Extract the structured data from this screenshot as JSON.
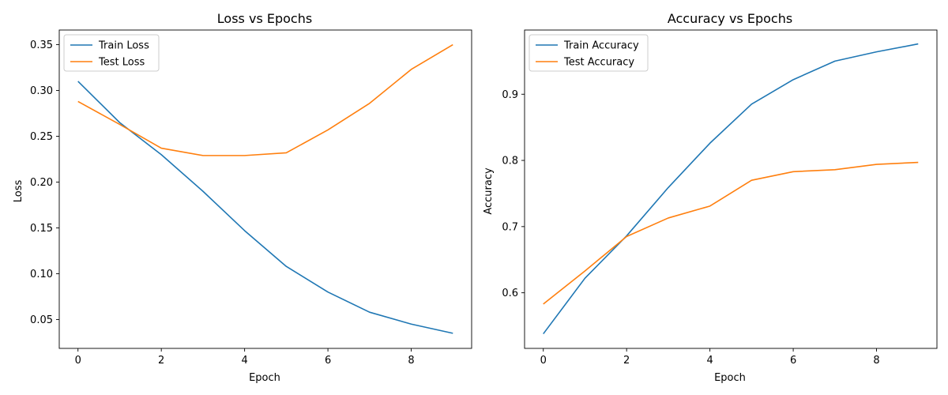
{
  "colors": {
    "train": "#1f77b4",
    "test": "#ff7f0e"
  },
  "chart_data": [
    {
      "type": "line",
      "title": "Loss vs Epochs",
      "xlabel": "Epoch",
      "ylabel": "Loss",
      "x": [
        0,
        1,
        2,
        3,
        4,
        5,
        6,
        7,
        8,
        9
      ],
      "xlim": [
        -0.45,
        9.45
      ],
      "ylim": [
        0.0185,
        0.366
      ],
      "xticks": [
        0,
        2,
        4,
        6,
        8
      ],
      "xtick_labels": [
        "0",
        "2",
        "4",
        "6",
        "8"
      ],
      "yticks": [
        0.05,
        0.1,
        0.15,
        0.2,
        0.25,
        0.3,
        0.35
      ],
      "ytick_labels": [
        "0.05",
        "0.10",
        "0.15",
        "0.20",
        "0.25",
        "0.30",
        "0.35"
      ],
      "grid": false,
      "legend": "upper-left",
      "series": [
        {
          "name": "Train Loss",
          "color": "#1f77b4",
          "values": [
            0.31,
            0.265,
            0.23,
            0.19,
            0.147,
            0.108,
            0.08,
            0.058,
            0.045,
            0.035
          ]
        },
        {
          "name": "Test Loss",
          "color": "#ff7f0e",
          "values": [
            0.288,
            0.263,
            0.237,
            0.229,
            0.229,
            0.232,
            0.257,
            0.286,
            0.323,
            0.35
          ]
        }
      ]
    },
    {
      "type": "line",
      "title": "Accuracy vs Epochs",
      "xlabel": "Epoch",
      "ylabel": "Accuracy",
      "x": [
        0,
        1,
        2,
        3,
        4,
        5,
        6,
        7,
        8,
        9
      ],
      "xlim": [
        -0.45,
        9.45
      ],
      "ylim": [
        0.516,
        0.997
      ],
      "xticks": [
        0,
        2,
        4,
        6,
        8
      ],
      "xtick_labels": [
        "0",
        "2",
        "4",
        "6",
        "8"
      ],
      "yticks": [
        0.6,
        0.7,
        0.8,
        0.9
      ],
      "ytick_labels": [
        "0.6",
        "0.7",
        "0.8",
        "0.9"
      ],
      "grid": false,
      "legend": "upper-left",
      "series": [
        {
          "name": "Train Accuracy",
          "color": "#1f77b4",
          "values": [
            0.538,
            0.622,
            0.686,
            0.759,
            0.826,
            0.885,
            0.922,
            0.95,
            0.964,
            0.976
          ]
        },
        {
          "name": "Test Accuracy",
          "color": "#ff7f0e",
          "values": [
            0.583,
            0.633,
            0.685,
            0.713,
            0.731,
            0.77,
            0.783,
            0.786,
            0.794,
            0.797
          ]
        }
      ]
    }
  ]
}
